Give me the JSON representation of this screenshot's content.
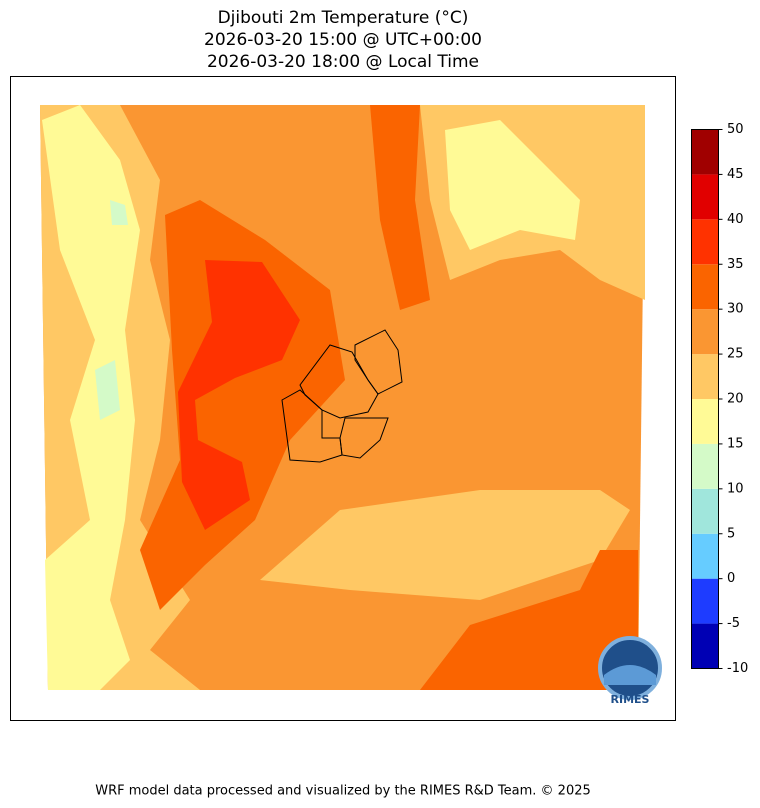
{
  "header": {
    "title_lines": [
      "Djibouti 2m Temperature (°C)",
      "2026-03-20 15:00 @ UTC+00:00",
      "2026-03-20 18:00 @ Local Time"
    ]
  },
  "colorbar": {
    "ticks": [
      -10,
      -5,
      0,
      5,
      10,
      15,
      20,
      25,
      30,
      35,
      40,
      45,
      50
    ],
    "colors": [
      "#0000b4",
      "#1e3cff",
      "#66ccff",
      "#a0e6dc",
      "#d4fac8",
      "#fffa96",
      "#ffc864",
      "#fa9632",
      "#fa6400",
      "#ff3200",
      "#e10000",
      "#a00000"
    ]
  },
  "logo": "RIMES",
  "footer": "WRF model data processed and visualized by the RIMES R&D Team. © 2025"
}
